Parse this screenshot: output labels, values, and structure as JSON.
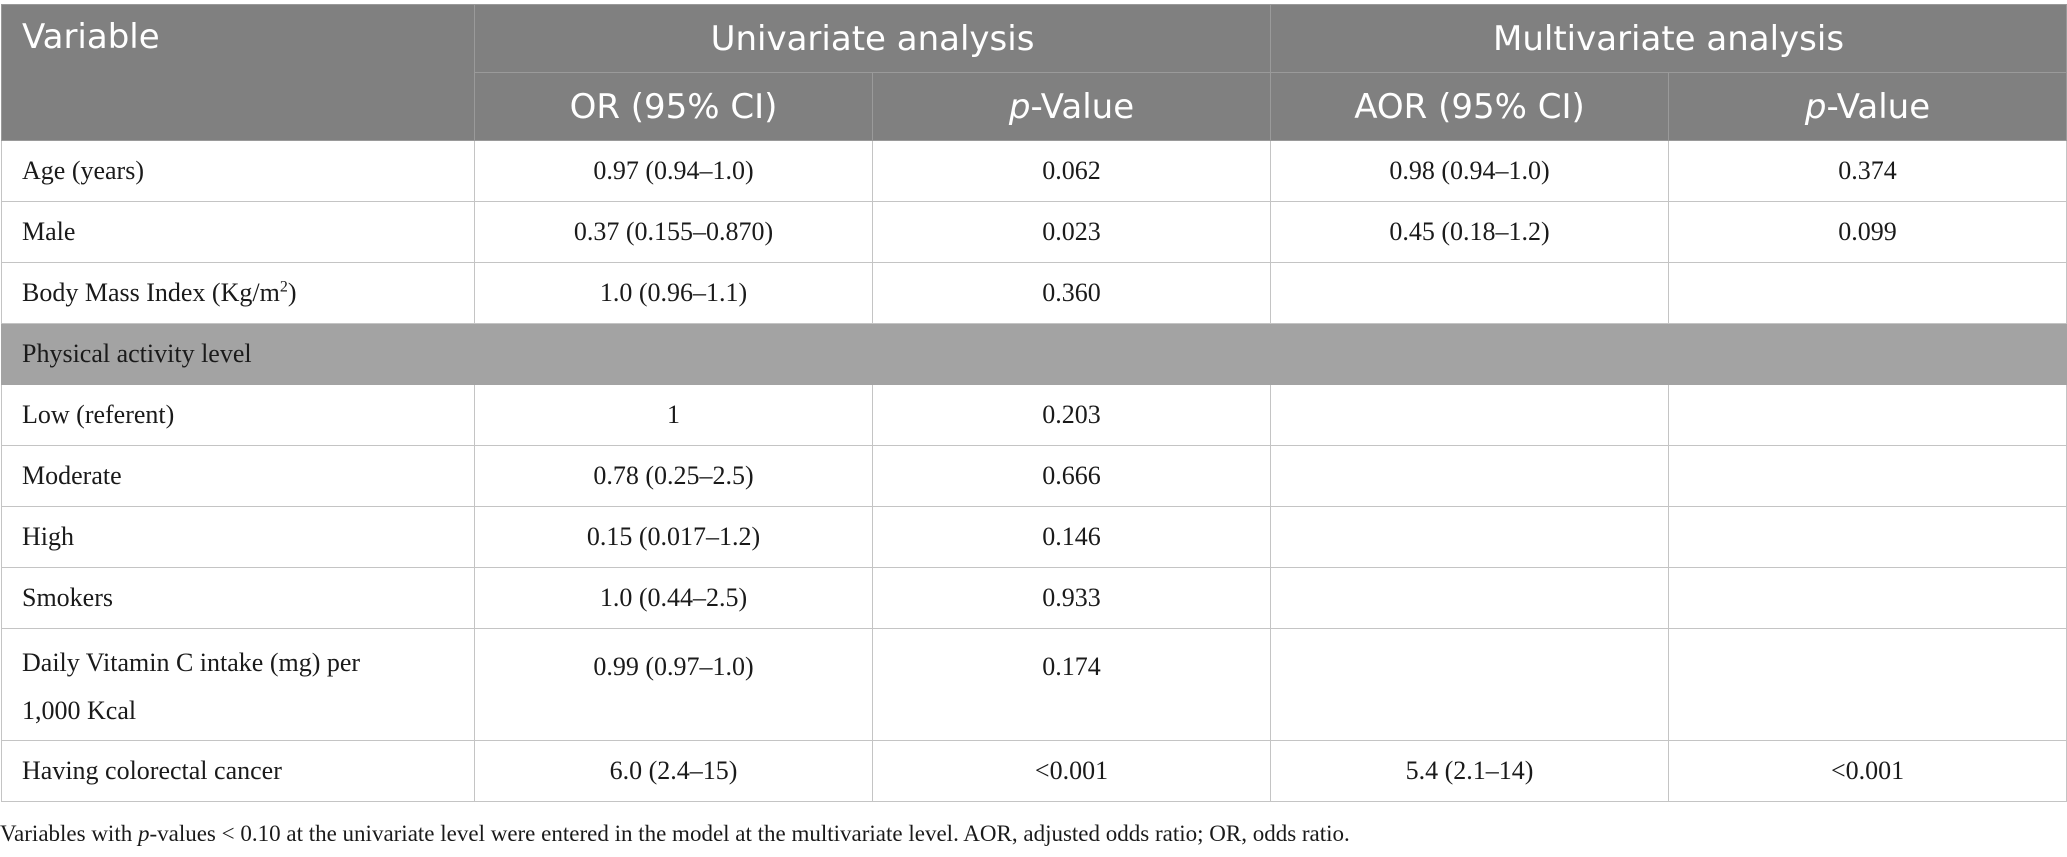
{
  "header": {
    "variable": "Variable",
    "univariate": "Univariate analysis",
    "multivariate": "Multivariate analysis",
    "or_ci": "OR (95% CI)",
    "p_italic": "p",
    "p_suffix": "-Value",
    "aor_ci": "AOR (95% CI)"
  },
  "rows": [
    {
      "label": "Age (years)",
      "or": "0.97 (0.94–1.0)",
      "p": "0.062",
      "aor": "0.98 (0.94–1.0)",
      "p2": "0.374"
    },
    {
      "label": "Male",
      "or": "0.37 (0.155–0.870)",
      "p": "0.023",
      "aor": "0.45 (0.18–1.2)",
      "p2": "0.099"
    },
    {
      "label_prefix": "Body Mass Index (Kg/m",
      "label_sup": "2",
      "label_suffix": ")",
      "or": "1.0 (0.96–1.1)",
      "p": "0.360",
      "aor": "",
      "p2": ""
    },
    {
      "section": "Physical activity level"
    },
    {
      "label": "Low (referent)",
      "or": "1",
      "p": "0.203",
      "aor": "",
      "p2": ""
    },
    {
      "label": "Moderate",
      "or": "0.78 (0.25–2.5)",
      "p": "0.666",
      "aor": "",
      "p2": ""
    },
    {
      "label": "High",
      "or": "0.15 (0.017–1.2)",
      "p": "0.146",
      "aor": "",
      "p2": ""
    },
    {
      "label": "Smokers",
      "or": "1.0 (0.44–2.5)",
      "p": "0.933",
      "aor": "",
      "p2": ""
    },
    {
      "label_line1": "Daily Vitamin C intake (mg) per",
      "label_line2": "1,000 Kcal",
      "or": "0.99 (0.97–1.0)",
      "p": "0.174",
      "aor": "",
      "p2": ""
    },
    {
      "label": "Having colorectal cancer",
      "or": "6.0 (2.4–15)",
      "p": "<0.001",
      "aor": "5.4 (2.1–14)",
      "p2": "<0.001"
    }
  ],
  "footnote": {
    "pre": "Variables with ",
    "p_italic": "p",
    "post": "-values < 0.10 at the univariate level were entered in the model at the multivariate level. AOR, adjusted odds ratio; OR, odds ratio."
  }
}
